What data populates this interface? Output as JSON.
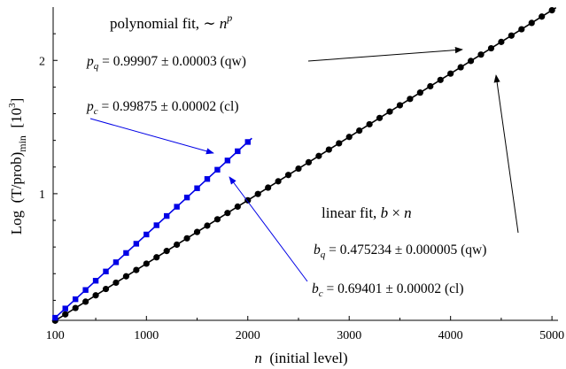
{
  "chart_data": {
    "type": "scatter",
    "xlabel_var": "n",
    "xlabel_rest": "  (initial level)",
    "ylabel_pre": "Log  (T/prob)",
    "ylabel_sub": "min",
    "ylabel_unit_pre": "  [10",
    "ylabel_unit_sup": "3",
    "ylabel_unit_post": "]",
    "xlim": [
      80,
      5060
    ],
    "ylim": [
      0.05,
      2.4
    ],
    "x_ticks": [
      100,
      1000,
      2000,
      3000,
      4000,
      5000
    ],
    "y_ticks": [
      1,
      2
    ],
    "series": [
      {
        "marker": "circle",
        "color": "#000000",
        "x_start": 100,
        "x_end": 5000,
        "x_step": 100,
        "slope": 0.475234,
        "fit_line": true
      },
      {
        "marker": "square",
        "color": "#0000e6",
        "x_start": 100,
        "x_end": 2000,
        "x_step": 100,
        "slope": 0.69401,
        "fit_line": true
      }
    ],
    "annotations": {
      "poly_title_text": "polynomial fit, ∼ ",
      "poly_title_var": "n",
      "poly_title_sup": "p",
      "pq_var": "p",
      "pq_sub": "q",
      "pq_text": " = 0.99907 ± 0.00003 (qw)",
      "pc_var": "p",
      "pc_sub": "c",
      "pc_text": " = 0.99875 ± 0.00002 (cl)",
      "lin_title_text": "linear fit, ",
      "lin_title_b": "b",
      "lin_title_mid": " × ",
      "lin_title_n": "n",
      "bq_var": "b",
      "bq_sub": "q",
      "bq_text": " = 0.475234 ± 0.000005 (qw)",
      "bc_var": "b",
      "bc_sub": "c",
      "bc_text": " = 0.69401 ± 0.00002 (cl)"
    },
    "grid": false,
    "legend": "none"
  }
}
